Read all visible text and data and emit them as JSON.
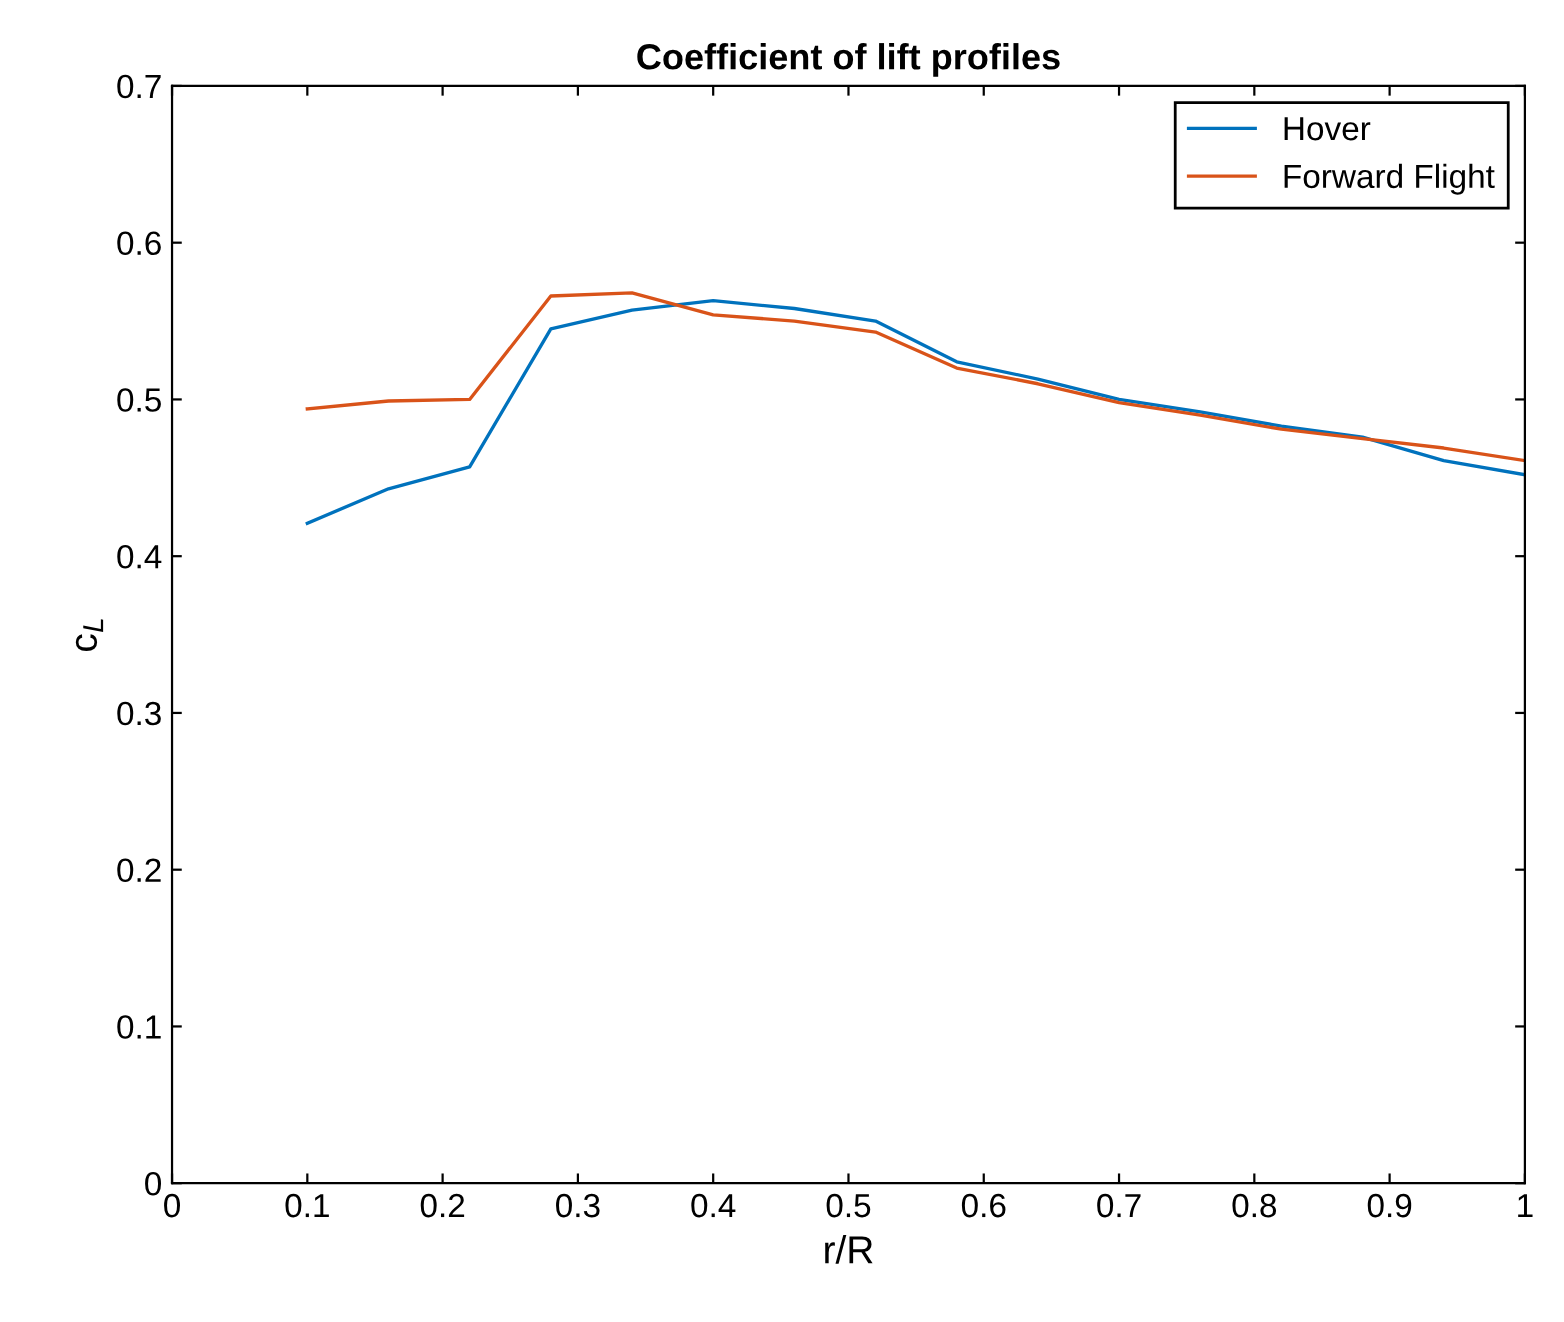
{
  "chart_data": {
    "type": "line",
    "title": "Coefficient of lift profiles",
    "xlabel": "r/R",
    "ylabel": "c$_{L}$",
    "x": [
      0.1,
      0.16,
      0.22,
      0.28,
      0.34,
      0.4,
      0.46,
      0.52,
      0.58,
      0.64,
      0.7,
      0.76,
      0.82,
      0.88,
      0.94,
      1.0
    ],
    "series": [
      {
        "name": "Hover",
        "color": "#0072bd",
        "values": [
          0.421,
          0.443,
          0.457,
          0.545,
          0.557,
          0.563,
          0.558,
          0.55,
          0.524,
          0.513,
          0.5,
          0.492,
          0.483,
          0.476,
          0.461,
          0.452
        ]
      },
      {
        "name": "Forward Flight",
        "color": "#d95319",
        "values": [
          0.494,
          0.499,
          0.5,
          0.566,
          0.568,
          0.554,
          0.55,
          0.543,
          0.52,
          0.51,
          0.498,
          0.49,
          0.481,
          0.475,
          0.469,
          0.461
        ]
      }
    ],
    "xlim": [
      0,
      1
    ],
    "ylim": [
      0,
      0.7
    ],
    "xticks": [
      0,
      0.1,
      0.2,
      0.3,
      0.4,
      0.5,
      0.6,
      0.7,
      0.8,
      0.9,
      1
    ],
    "yticks": [
      0,
      0.1,
      0.2,
      0.3,
      0.4,
      0.5,
      0.6,
      0.7
    ],
    "legend": "top right",
    "grid": false,
    "marker": "none",
    "line_style": "solid"
  }
}
